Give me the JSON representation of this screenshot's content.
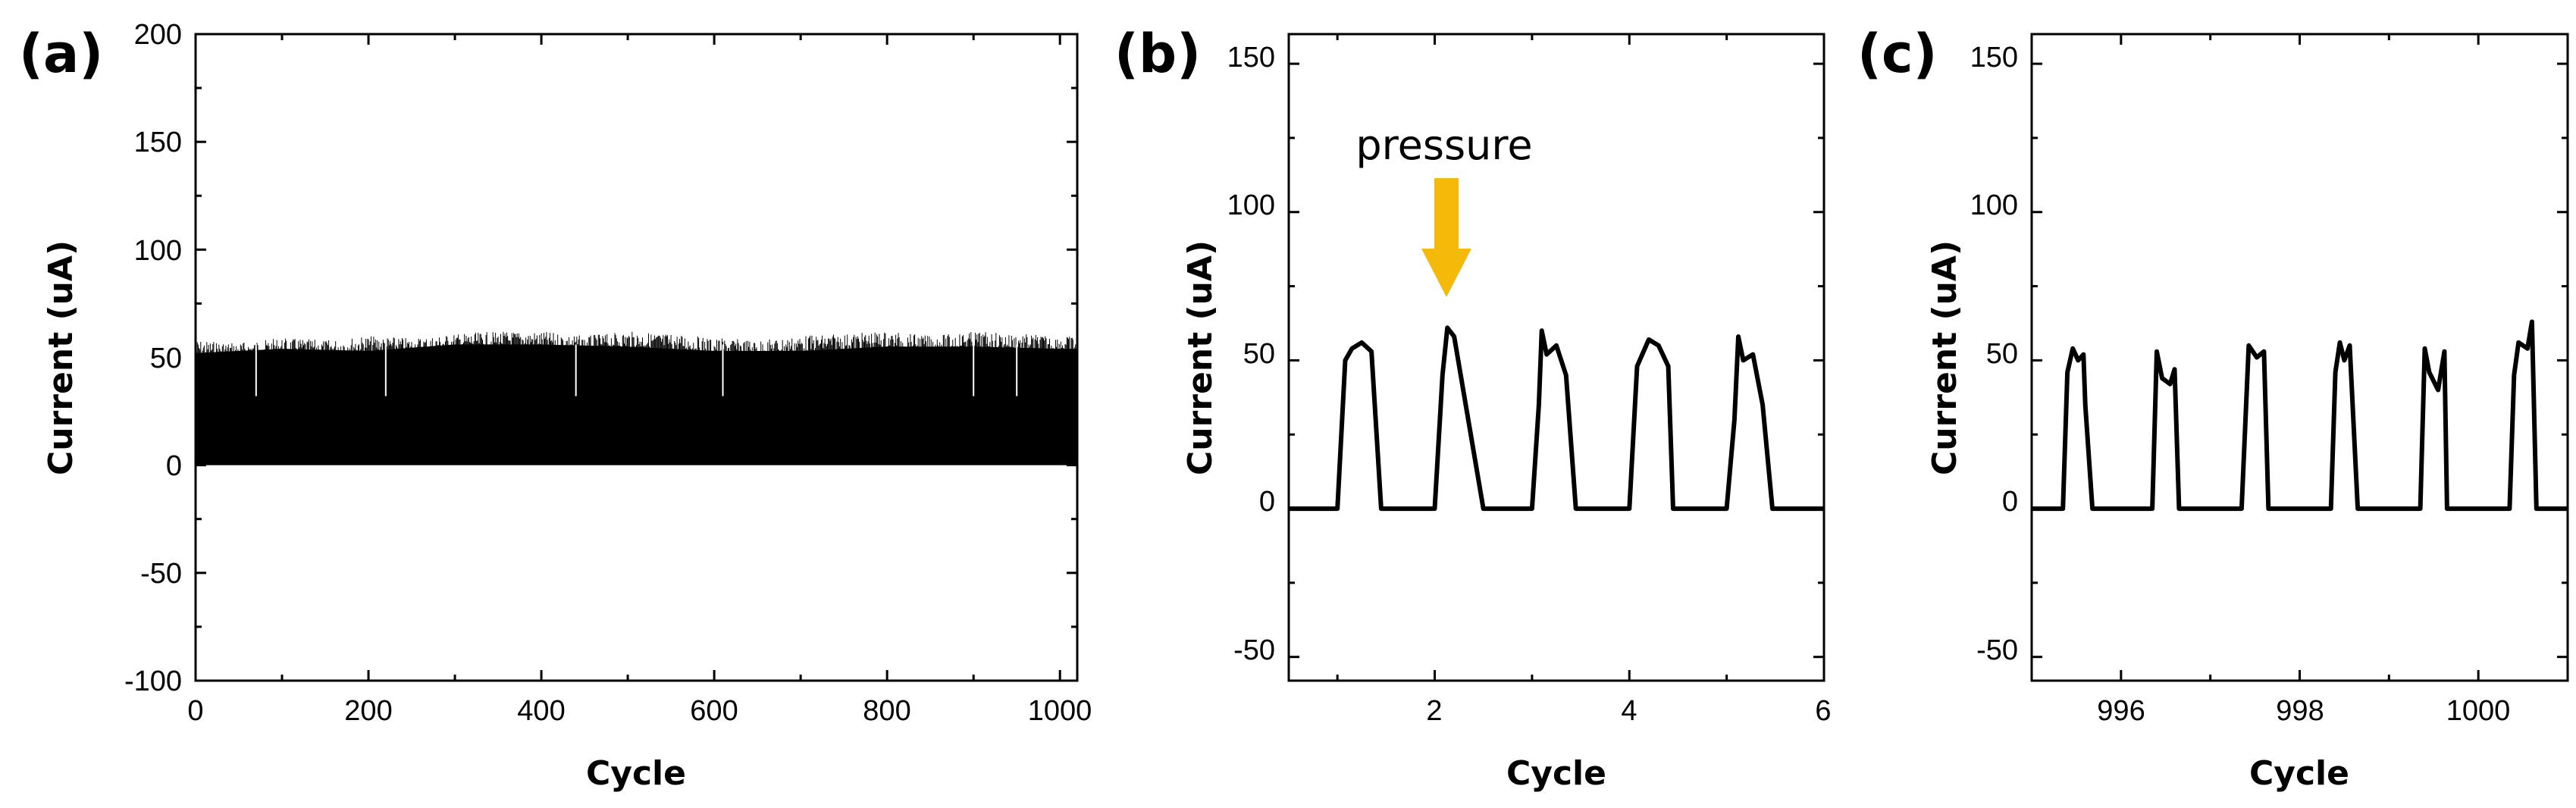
{
  "chart_data": [
    {
      "panel": "(a)",
      "type": "line",
      "xlabel": "Cycle",
      "ylabel": "Current (uA)",
      "xlim": [
        0,
        1020
      ],
      "ylim": [
        -100,
        200
      ],
      "xticks": [
        0,
        200,
        400,
        600,
        800,
        1000
      ],
      "yticks": [
        -100,
        -50,
        0,
        50,
        100,
        150,
        200
      ],
      "series": [
        {
          "name": "Current",
          "description": "Dense repeated pulses from 0 to ~50-60 uA over 1000 cycles",
          "pulse_peak_envelope": [
            [
              0,
              58
            ],
            [
              50,
              57
            ],
            [
              100,
              59
            ],
            [
              150,
              58
            ],
            [
              200,
              60
            ],
            [
              250,
              59
            ],
            [
              300,
              61
            ],
            [
              350,
              62
            ],
            [
              400,
              62
            ],
            [
              450,
              60
            ],
            [
              500,
              62
            ],
            [
              550,
              61
            ],
            [
              600,
              59
            ],
            [
              650,
              58
            ],
            [
              700,
              60
            ],
            [
              750,
              61
            ],
            [
              800,
              62
            ],
            [
              850,
              60
            ],
            [
              900,
              62
            ],
            [
              950,
              61
            ],
            [
              1000,
              60
            ],
            [
              1020,
              60
            ]
          ],
          "body_level": [
            [
              0,
              52
            ],
            [
              100,
              54
            ],
            [
              200,
              53
            ],
            [
              300,
              56
            ],
            [
              400,
              56
            ],
            [
              500,
              55
            ],
            [
              600,
              53
            ],
            [
              700,
              53
            ],
            [
              800,
              55
            ],
            [
              900,
              55
            ],
            [
              1000,
              54
            ],
            [
              1020,
              54
            ]
          ]
        }
      ]
    },
    {
      "panel": "(b)",
      "type": "line",
      "xlabel": "Cycle",
      "ylabel": "Current (uA)",
      "xlim": [
        0.5,
        6
      ],
      "ylim": [
        -58,
        160
      ],
      "xticks": [
        2,
        4,
        6
      ],
      "yticks": [
        -50,
        0,
        50,
        100,
        150
      ],
      "annotation": "pressure",
      "annotation_x": 2.15,
      "series": [
        {
          "name": "Current",
          "x": [
            0.5,
            1.0,
            1.08,
            1.15,
            1.25,
            1.35,
            1.45,
            2.0,
            2.08,
            2.13,
            2.2,
            2.5,
            3.0,
            3.07,
            3.1,
            3.15,
            3.25,
            3.35,
            3.45,
            4.0,
            4.08,
            4.2,
            4.3,
            4.4,
            4.45,
            5.0,
            5.08,
            5.12,
            5.17,
            5.27,
            5.37,
            5.47,
            6.0
          ],
          "y": [
            0,
            0,
            50,
            54,
            56,
            53,
            0,
            0,
            45,
            61,
            58,
            0,
            0,
            35,
            60,
            52,
            55,
            45,
            0,
            0,
            48,
            57,
            55,
            48,
            0,
            0,
            30,
            58,
            50,
            52,
            35,
            0,
            0
          ]
        }
      ]
    },
    {
      "panel": "(c)",
      "type": "line",
      "xlabel": "Cycle",
      "ylabel": "Current (uA)",
      "xlim": [
        995,
        1001
      ],
      "ylim": [
        -58,
        160
      ],
      "xticks": [
        996,
        998,
        1000
      ],
      "yticks": [
        -50,
        0,
        50,
        100,
        150
      ],
      "series": [
        {
          "name": "Current",
          "x": [
            995,
            995.35,
            995.4,
            995.46,
            995.52,
            995.58,
            995.6,
            995.68,
            996.35,
            996.4,
            996.46,
            996.55,
            996.6,
            996.65,
            997.35,
            997.43,
            997.52,
            997.6,
            997.65,
            998.35,
            998.4,
            998.45,
            998.5,
            998.56,
            998.65,
            999.35,
            999.4,
            999.45,
            999.55,
            999.62,
            999.65,
            1000.35,
            1000.4,
            1000.45,
            1000.55,
            1000.6,
            1000.65,
            1001
          ],
          "y": [
            0,
            0,
            46,
            54,
            50,
            52,
            35,
            0,
            0,
            53,
            44,
            42,
            47,
            0,
            0,
            55,
            51,
            53,
            0,
            0,
            46,
            56,
            50,
            55,
            0,
            0,
            54,
            46,
            40,
            53,
            0,
            0,
            45,
            56,
            54,
            63,
            0,
            0
          ]
        }
      ]
    }
  ]
}
